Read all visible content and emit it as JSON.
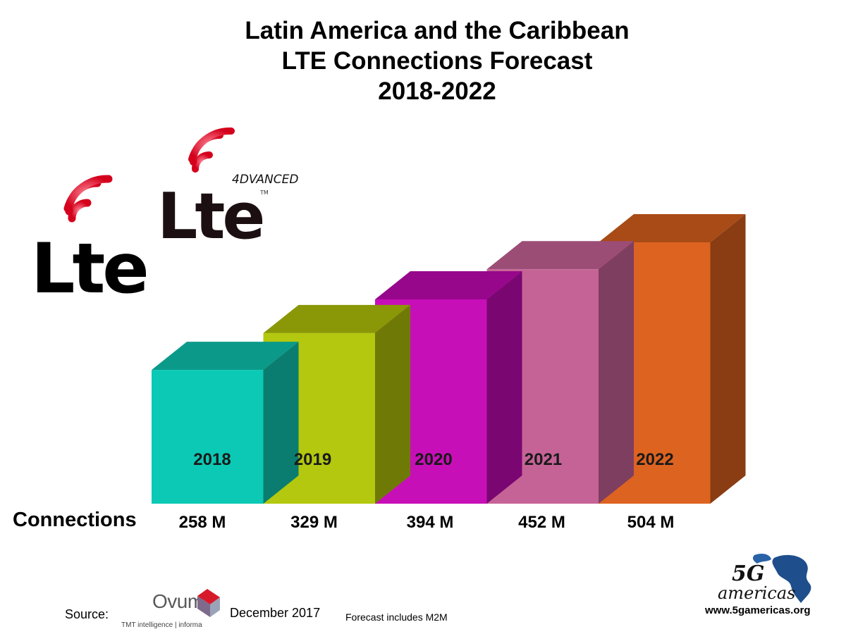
{
  "title": {
    "line1": "Latin America and the Caribbean",
    "line2": "LTE Connections Forecast",
    "line3": "2018-2022"
  },
  "chart_data": {
    "type": "bar",
    "style": "3d",
    "categories": [
      "2018",
      "2019",
      "2020",
      "2021",
      "2022"
    ],
    "series": [
      {
        "name": "Connections",
        "values": [
          258,
          329,
          394,
          452,
          504
        ]
      }
    ],
    "value_labels": [
      "258 M",
      "329 M",
      "394 M",
      "452 M",
      "504 M"
    ],
    "unit": "M",
    "colors": {
      "front": [
        "#0cc9b5",
        "#b3c80e",
        "#c70fb7",
        "#c66396",
        "#dd6321"
      ],
      "top": [
        "#0b9a8a",
        "#8a9706",
        "#97078c",
        "#9c4d76",
        "#a84b16"
      ],
      "side": [
        "#0a7d70",
        "#6f7a06",
        "#7a0672",
        "#7e3e60",
        "#8a3c12"
      ]
    },
    "grid": false,
    "legend": "none"
  },
  "row_label": "Connections",
  "logos": {
    "lte_text": "Lte",
    "lte_advanced_text": "Lte",
    "lte_advanced_tag": "4DVANCED",
    "trademark": "TM",
    "ovum_name": "Ovum",
    "ovum_tagline": "TMT intelligence | informa",
    "fiveg_mark": "5G",
    "fiveg_word": "americas"
  },
  "footer": {
    "source_label": "Source:",
    "date": "December 2017",
    "note": "Forecast includes M2M",
    "url": "www.5gamericas.org"
  }
}
